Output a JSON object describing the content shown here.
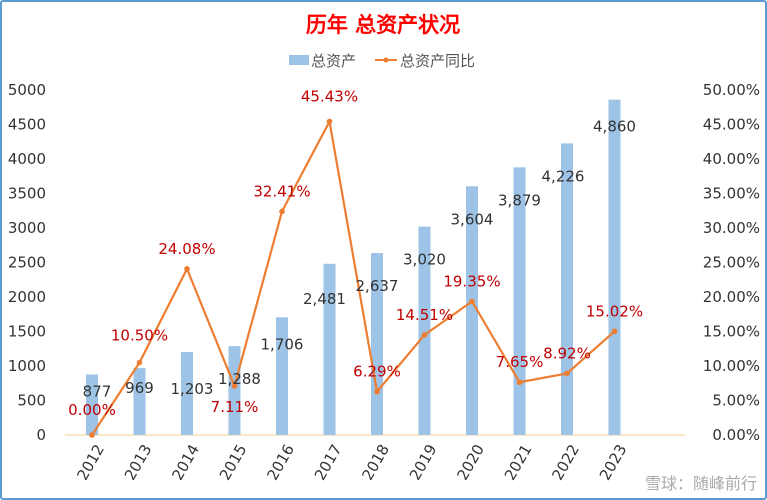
{
  "chart_data": {
    "type": "bar+line",
    "title": "历年 总资产状况",
    "categories": [
      "2012",
      "2013",
      "2014",
      "2015",
      "2016",
      "2017",
      "2018",
      "2019",
      "2020",
      "2021",
      "2022",
      "2023"
    ],
    "series": [
      {
        "name": "总资产",
        "type": "bar",
        "axis": "left",
        "color": "#9dc3e6",
        "values": [
          877,
          969,
          1203,
          1288,
          1706,
          2481,
          2637,
          3020,
          3604,
          3879,
          4226,
          4860
        ],
        "labels": [
          "877",
          "969",
          "1,203",
          "1,288",
          "1,706",
          "2,481",
          "2,637",
          "3,020",
          "3,604",
          "3,879",
          "4,226",
          "4,860"
        ]
      },
      {
        "name": "总资产同比",
        "type": "line",
        "axis": "right",
        "color": "#ed7d31",
        "values": [
          0.0,
          10.5,
          24.08,
          7.11,
          32.41,
          45.43,
          6.29,
          14.51,
          19.35,
          7.65,
          8.92,
          15.02
        ],
        "labels": [
          "0.00%",
          "10.50%",
          "24.08%",
          "7.11%",
          "32.41%",
          "45.43%",
          "6.29%",
          "14.51%",
          "19.35%",
          "7.65%",
          "8.92%",
          "15.02%"
        ]
      }
    ],
    "ylim": [
      0,
      5000
    ],
    "yticks": [
      "0",
      "500",
      "1000",
      "1500",
      "2000",
      "2500",
      "3000",
      "3500",
      "4000",
      "4500",
      "5000"
    ],
    "y2lim": [
      0,
      50
    ],
    "y2ticks": [
      "0.00%",
      "5.00%",
      "10.00%",
      "15.00%",
      "20.00%",
      "25.00%",
      "30.00%",
      "35.00%",
      "40.00%",
      "45.00%",
      "50.00%"
    ],
    "legend_position": "top",
    "grid": false,
    "title_color": "#ff0000",
    "data_label_color_line": "#c00000"
  },
  "watermark": "雪球：随峰前行"
}
